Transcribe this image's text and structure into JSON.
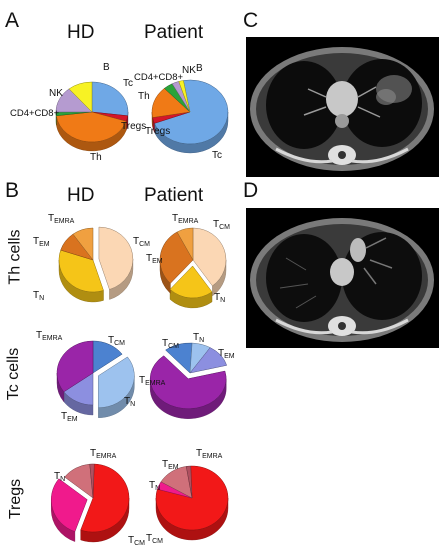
{
  "panels": {
    "a": "A",
    "b": "B",
    "c": "C",
    "d": "D"
  },
  "columns": {
    "hd": "HD",
    "patient": "Patient"
  },
  "rows": {
    "th": "Th cells",
    "tc": "Tc cells",
    "tregs": "Tregs"
  },
  "colors": {
    "tc": "#6fa8e6",
    "th": "#f07a16",
    "tregs": "#d4162a",
    "cd4cd8": "#2aa33a",
    "nk": "#b59bd0",
    "b": "#f7f224",
    "th_tcm": "#fbd7b4",
    "th_tem": "#d9731f",
    "th_temra": "#f0a040",
    "th_tn": "#f5c518",
    "tc_tcm": "#4c82d0",
    "tc_tn": "#9dc2ee",
    "tc_tem": "#8c8fe0",
    "tc_temra": "#9a25a8",
    "tr_tcm": "#f21818",
    "tr_tn": "#f01a8c",
    "tr_tem": "#d0707a",
    "tr_temra": "#b05060"
  },
  "chart_data": [
    {
      "type": "pie",
      "title": "",
      "panel": "A",
      "column": "HD",
      "categories": [
        "Tc",
        "Tregs",
        "Th",
        "CD4+CD8+",
        "NK",
        "B"
      ],
      "values": [
        27,
        3,
        43,
        2,
        14,
        11
      ]
    },
    {
      "type": "pie",
      "title": "",
      "panel": "A",
      "column": "Patient",
      "categories": [
        "Tc",
        "Tregs",
        "Th",
        "CD4+CD8+",
        "NK",
        "B"
      ],
      "values": [
        72,
        3,
        16,
        4,
        3,
        2
      ]
    },
    {
      "type": "pie",
      "title": "",
      "panel": "B",
      "row": "Th cells",
      "column": "HD",
      "categories": [
        "TCM",
        "TN",
        "TEM",
        "TEMRA"
      ],
      "values": [
        45,
        35,
        10,
        10
      ]
    },
    {
      "type": "pie",
      "title": "",
      "panel": "B",
      "row": "Th cells",
      "column": "Patient",
      "categories": [
        "TCM",
        "TN",
        "TEM",
        "TEMRA"
      ],
      "values": [
        40,
        22,
        30,
        8
      ]
    },
    {
      "type": "pie",
      "title": "",
      "panel": "B",
      "row": "Tc cells",
      "column": "HD",
      "categories": [
        "TCM",
        "TN",
        "TEM",
        "TEMRA"
      ],
      "values": [
        15,
        35,
        15,
        35
      ]
    },
    {
      "type": "pie",
      "title": "",
      "panel": "B",
      "row": "Tc cells",
      "column": "Patient",
      "categories": [
        "TCM",
        "TN",
        "TEM",
        "TEMRA"
      ],
      "values": [
        12,
        8,
        12,
        68
      ]
    },
    {
      "type": "pie",
      "title": "",
      "panel": "B",
      "row": "Tregs",
      "column": "HD",
      "categories": [
        "TCM",
        "TN",
        "TEM",
        "TEMRA"
      ],
      "values": [
        55,
        30,
        13,
        2
      ]
    },
    {
      "type": "pie",
      "title": "",
      "panel": "B",
      "row": "Tregs",
      "column": "Patient",
      "categories": [
        "TCM",
        "TN",
        "TEM",
        "TEMRA"
      ],
      "values": [
        80,
        4,
        14,
        2
      ]
    }
  ],
  "labels": {
    "tc": "Tc",
    "tregs": "Tregs",
    "th": "Th",
    "cd4cd8": "CD4+CD8+",
    "nk": "NK",
    "b": "B",
    "t": "T",
    "cm": "CM",
    "n": "N",
    "em": "EM",
    "emra": "EMRA"
  }
}
